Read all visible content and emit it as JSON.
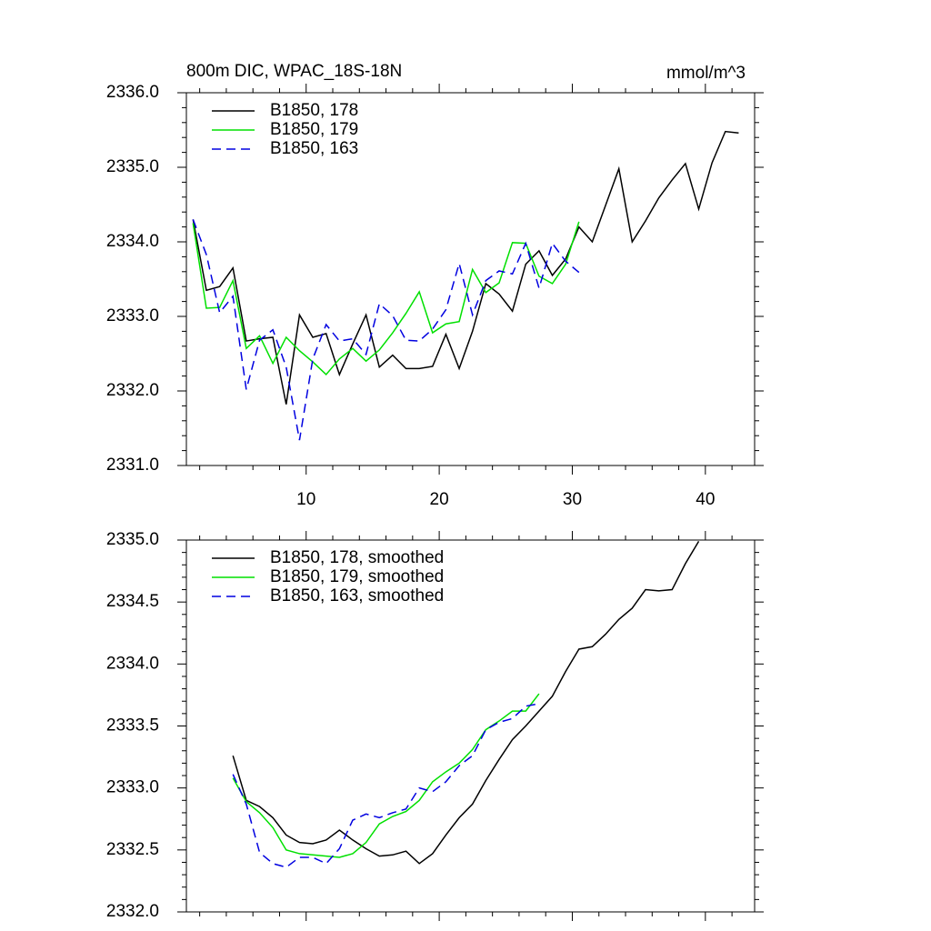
{
  "chart_data": [
    {
      "type": "line",
      "title": "800m DIC, WPAC_18S-18N",
      "right_title": "mmol/m^3",
      "xlim": [
        1,
        43.7
      ],
      "xticks": [
        10,
        20,
        30,
        40
      ],
      "xminor_ticks": [
        2,
        4,
        6,
        8,
        12,
        14,
        16,
        18,
        22,
        24,
        26,
        28,
        32,
        34,
        36,
        38,
        42
      ],
      "xtick_labels": true,
      "ylim": [
        2331,
        2336
      ],
      "yticks": [
        {
          "value": 2331,
          "label": "2331.0"
        },
        {
          "value": 2332,
          "label": "2332.0"
        },
        {
          "value": 2333,
          "label": "2333.0"
        },
        {
          "value": 2334,
          "label": "2334.0"
        },
        {
          "value": 2335,
          "label": "2335.0"
        },
        {
          "value": 2336,
          "label": "2336.0"
        }
      ],
      "yminor_ticks": [
        2331.2,
        2331.4,
        2331.6,
        2331.8,
        2332.2,
        2332.4,
        2332.6,
        2332.8,
        2333.2,
        2333.4,
        2333.6,
        2333.8,
        2334.2,
        2334.4,
        2334.6,
        2334.8,
        2335.2,
        2335.4,
        2335.6,
        2335.8
      ],
      "series": [
        {
          "name": "B1850, 178",
          "color": "#000000",
          "dash": false,
          "x": [
            1.5,
            2.5,
            3.5,
            4.5,
            5.5,
            6.5,
            7.5,
            8.5,
            9.5,
            10.5,
            11.5,
            12.5,
            13.5,
            14.5,
            15.5,
            16.5,
            17.5,
            18.5,
            19.5,
            20.5,
            21.5,
            22.5,
            23.5,
            24.5,
            25.5,
            26.5,
            27.5,
            28.5,
            29.5,
            30.5,
            31.5,
            32.5,
            33.5,
            34.5,
            35.5,
            36.5,
            37.5,
            38.5,
            39.5,
            40.5,
            41.5,
            42.5
          ],
          "values": [
            2334.3,
            2333.35,
            2333.4,
            2333.65,
            2332.67,
            2332.7,
            2332.72,
            2331.82,
            2333.02,
            2332.72,
            2332.77,
            2332.22,
            2332.63,
            2333.02,
            2332.32,
            2332.48,
            2332.3,
            2332.3,
            2332.33,
            2332.76,
            2332.3,
            2332.8,
            2333.44,
            2333.3,
            2333.07,
            2333.7,
            2333.88,
            2333.55,
            2333.77,
            2334.2,
            2334.0,
            2334.49,
            2334.98,
            2334.0,
            2334.28,
            2334.59,
            2334.83,
            2335.05,
            2334.44,
            2335.06,
            2335.48,
            2335.46
          ]
        },
        {
          "name": "B1850, 179",
          "color": "#00e000",
          "dash": false,
          "x": [
            1.5,
            2.5,
            3.5,
            4.5,
            5.5,
            6.5,
            7.5,
            8.5,
            9.5,
            10.5,
            11.5,
            12.5,
            13.5,
            14.5,
            15.5,
            16.5,
            17.5,
            18.5,
            19.5,
            20.5,
            21.5,
            22.5,
            23.5,
            24.5,
            25.5,
            26.5,
            27.5,
            28.5,
            29.5,
            30.5
          ],
          "values": [
            2334.25,
            2333.11,
            2333.12,
            2333.48,
            2332.57,
            2332.74,
            2332.37,
            2332.72,
            2332.54,
            2332.39,
            2332.22,
            2332.43,
            2332.57,
            2332.4,
            2332.55,
            2332.78,
            2333.04,
            2333.33,
            2332.78,
            2332.9,
            2332.93,
            2333.63,
            2333.32,
            2333.45,
            2333.99,
            2333.98,
            2333.54,
            2333.44,
            2333.7,
            2334.27
          ]
        },
        {
          "name": "B1850, 163",
          "color": "#0000e0",
          "dash": true,
          "x": [
            1.5,
            2.5,
            3.5,
            4.5,
            5.5,
            6.5,
            7.5,
            8.5,
            9.5,
            10.5,
            11.5,
            12.5,
            13.5,
            14.5,
            15.5,
            16.5,
            17.5,
            18.5,
            19.5,
            20.5,
            21.5,
            22.5,
            23.5,
            24.5,
            25.5,
            26.5,
            27.5,
            28.5,
            29.5,
            30.5
          ],
          "values": [
            2334.3,
            2333.83,
            2333.05,
            2333.27,
            2332.02,
            2332.68,
            2332.82,
            2332.32,
            2331.34,
            2332.43,
            2332.89,
            2332.67,
            2332.7,
            2332.49,
            2333.17,
            2333.01,
            2332.68,
            2332.67,
            2332.83,
            2333.09,
            2333.71,
            2333.02,
            2333.48,
            2333.61,
            2333.57,
            2333.98,
            2333.38,
            2333.98,
            2333.74,
            2333.59
          ]
        }
      ]
    },
    {
      "type": "line",
      "xlim": [
        1,
        43.7
      ],
      "xticks": [
        10,
        20,
        30,
        40
      ],
      "xminor_ticks": [
        2,
        4,
        6,
        8,
        12,
        14,
        16,
        18,
        22,
        24,
        26,
        28,
        32,
        34,
        36,
        38,
        42
      ],
      "xtick_labels": false,
      "ylim": [
        2332,
        2335
      ],
      "yticks": [
        {
          "value": 2332,
          "label": "2332.0"
        },
        {
          "value": 2332.5,
          "label": "2332.5"
        },
        {
          "value": 2333,
          "label": "2333.0"
        },
        {
          "value": 2333.5,
          "label": "2333.5"
        },
        {
          "value": 2334,
          "label": "2334.0"
        },
        {
          "value": 2334.5,
          "label": "2334.5"
        },
        {
          "value": 2335,
          "label": "2335.0"
        }
      ],
      "yminor_ticks": [
        2332.1,
        2332.2,
        2332.3,
        2332.4,
        2332.6,
        2332.7,
        2332.8,
        2332.9,
        2333.1,
        2333.2,
        2333.3,
        2333.4,
        2333.6,
        2333.7,
        2333.8,
        2333.9,
        2334.1,
        2334.2,
        2334.3,
        2334.4,
        2334.6,
        2334.7,
        2334.8,
        2334.9
      ],
      "series": [
        {
          "name": "B1850, 178, smoothed",
          "color": "#000000",
          "dash": false,
          "x": [
            4.5,
            5.5,
            6.5,
            7.5,
            8.5,
            9.5,
            10.5,
            11.5,
            12.5,
            13.5,
            14.5,
            15.5,
            16.5,
            17.5,
            18.5,
            19.5,
            20.5,
            21.5,
            22.5,
            23.5,
            24.5,
            25.5,
            26.5,
            27.5,
            28.5,
            29.5,
            30.5,
            31.5,
            32.5,
            33.5,
            34.5,
            35.5,
            36.5,
            37.5,
            38.5,
            39.5
          ],
          "values": [
            2333.26,
            2332.9,
            2332.85,
            2332.76,
            2332.62,
            2332.56,
            2332.55,
            2332.58,
            2332.66,
            2332.58,
            2332.51,
            2332.45,
            2332.46,
            2332.49,
            2332.39,
            2332.47,
            2332.62,
            2332.76,
            2332.87,
            2333.06,
            2333.23,
            2333.39,
            2333.5,
            2333.62,
            2333.74,
            2333.94,
            2334.12,
            2334.14,
            2334.24,
            2334.36,
            2334.45,
            2334.6,
            2334.59,
            2334.6,
            2334.81,
            2334.99
          ]
        },
        {
          "name": "B1850, 179, smoothed",
          "color": "#00e000",
          "dash": false,
          "x": [
            4.5,
            5.5,
            6.5,
            7.5,
            8.5,
            9.5,
            10.5,
            11.5,
            12.5,
            13.5,
            14.5,
            15.5,
            16.5,
            17.5,
            18.5,
            19.5,
            20.5,
            21.5,
            22.5,
            23.5,
            24.5,
            25.5,
            26.5,
            27.5
          ],
          "values": [
            2333.08,
            2332.89,
            2332.8,
            2332.68,
            2332.5,
            2332.47,
            2332.46,
            2332.45,
            2332.44,
            2332.47,
            2332.56,
            2332.71,
            2332.77,
            2332.81,
            2332.9,
            2333.05,
            2333.13,
            2333.2,
            2333.31,
            2333.47,
            2333.54,
            2333.62,
            2333.62,
            2333.76
          ]
        },
        {
          "name": "B1850, 163, smoothed",
          "color": "#0000e0",
          "dash": true,
          "x": [
            4.5,
            5.5,
            6.5,
            7.5,
            8.5,
            9.5,
            10.5,
            11.5,
            12.5,
            13.5,
            14.5,
            15.5,
            16.5,
            17.5,
            18.5,
            19.5,
            20.5,
            21.5,
            22.5,
            23.5,
            24.5,
            25.5,
            26.5,
            27.5
          ],
          "values": [
            2333.11,
            2332.87,
            2332.48,
            2332.39,
            2332.36,
            2332.44,
            2332.44,
            2332.39,
            2332.51,
            2332.74,
            2332.79,
            2332.76,
            2332.8,
            2332.83,
            2333.0,
            2332.97,
            2333.05,
            2333.18,
            2333.26,
            2333.47,
            2333.53,
            2333.56,
            2333.66,
            2333.68
          ]
        }
      ]
    }
  ]
}
